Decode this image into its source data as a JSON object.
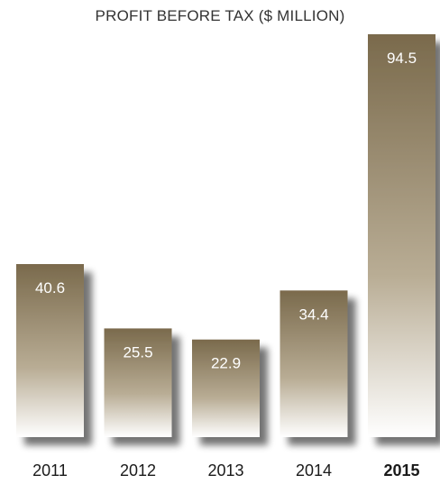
{
  "chart_data": {
    "type": "bar",
    "title": "PROFIT BEFORE TAX ($ MILLION)",
    "xlabel": "",
    "ylabel": "",
    "categories": [
      "2011",
      "2012",
      "2013",
      "2014",
      "2015"
    ],
    "values": [
      40.6,
      25.5,
      22.9,
      34.4,
      94.5
    ],
    "value_labels": [
      "40.6",
      "25.5",
      "22.9",
      "34.4",
      "94.5"
    ],
    "highlighted_category": "2015",
    "ylim": [
      0,
      94.5
    ],
    "grid": false,
    "legend": "none",
    "colors": {
      "bar_top": "#7a6a4c",
      "bar_bottom": "#ffffff",
      "label_text": "#ffffff",
      "tick_text": "#1a1a1a",
      "title_text": "#333333"
    }
  }
}
